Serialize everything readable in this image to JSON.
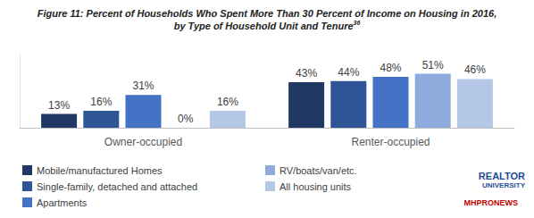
{
  "chart_data": {
    "type": "bar",
    "title": "Figure 11: Percent of Households Who Spent More Than 30 Percent of Income on Housing in 2016,\nby Type of Household Unit and Tenure",
    "title_footnote": "36",
    "categories": [
      "Owner-occupied",
      "Renter-occupied"
    ],
    "series": [
      {
        "name": "Mobile/manufactured Homes",
        "color": "#203864",
        "values": [
          13,
          43
        ],
        "value_labels": [
          "13%",
          "43%"
        ]
      },
      {
        "name": "Single-family, detached and attached",
        "color": "#2f5597",
        "values": [
          16,
          44
        ],
        "value_labels": [
          "16%",
          "44%"
        ]
      },
      {
        "name": "Apartments",
        "color": "#4472c4",
        "values": [
          31,
          48
        ],
        "value_labels": [
          "31%",
          "48%"
        ]
      },
      {
        "name": "RV/boats/van/etc.",
        "color": "#8faadc",
        "values": [
          0,
          51
        ],
        "value_labels": [
          "0%",
          "51%"
        ]
      },
      {
        "name": "All housing units",
        "color": "#b4c7e7",
        "values": [
          16,
          46
        ],
        "value_labels": [
          "16%",
          "46%"
        ]
      }
    ],
    "ylim": [
      0,
      70
    ],
    "grid": false,
    "tick_labels": "x",
    "data_labels": true,
    "legend": "bottom",
    "annotations": [
      "REALTOR",
      "UNIVERSITY",
      "MHPRONEWS"
    ]
  }
}
